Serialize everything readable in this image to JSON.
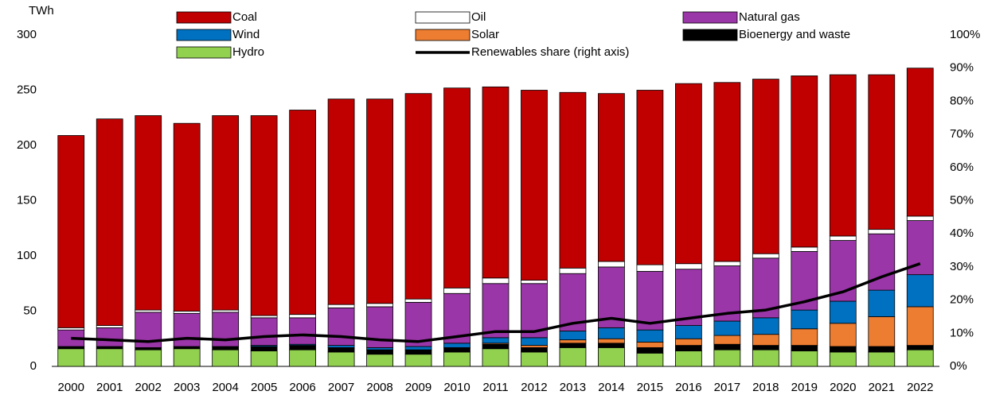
{
  "chart_data": {
    "type": "bar",
    "y_axis_label": "TWh",
    "categories": [
      "2000",
      "2001",
      "2002",
      "2003",
      "2004",
      "2005",
      "2006",
      "2007",
      "2008",
      "2009",
      "2010",
      "2011",
      "2012",
      "2013",
      "2014",
      "2015",
      "2016",
      "2017",
      "2018",
      "2019",
      "2020",
      "2021",
      "2022"
    ],
    "series": [
      {
        "name": "Coal",
        "color": "#c00000",
        "values": [
          174,
          187,
          176,
          170,
          176,
          181,
          185,
          186,
          185,
          186,
          181,
          173,
          172,
          159,
          152,
          158,
          163,
          162,
          158,
          155,
          146,
          140,
          134
        ]
      },
      {
        "name": "Oil",
        "color": "#ffffff",
        "values": [
          2,
          2,
          2,
          2,
          2,
          2,
          3,
          3,
          3,
          3,
          5,
          5,
          3,
          5,
          5,
          6,
          5,
          4,
          4,
          4,
          4,
          4,
          4
        ]
      },
      {
        "name": "Natural gas",
        "color": "#9b36a8",
        "values": [
          15,
          17,
          32,
          30,
          31,
          25,
          24,
          34,
          37,
          40,
          45,
          49,
          49,
          52,
          55,
          53,
          51,
          50,
          54,
          53,
          55,
          51,
          49
        ]
      },
      {
        "name": "Wind",
        "color": "#0070c0",
        "values": [
          0,
          0,
          0,
          0,
          0,
          1,
          1,
          2,
          2,
          3,
          4,
          5,
          7,
          8,
          10,
          11,
          12,
          13,
          15,
          17,
          20,
          24,
          29
        ]
      },
      {
        "name": "Solar",
        "color": "#ed7d31",
        "values": [
          0,
          0,
          0,
          0,
          0,
          0,
          0,
          0,
          0,
          0,
          0,
          1,
          2,
          3,
          4,
          5,
          6,
          8,
          10,
          15,
          21,
          27,
          35
        ]
      },
      {
        "name": "Bioenergy and waste",
        "color": "#000000",
        "values": [
          2,
          2,
          2,
          2,
          3,
          4,
          4,
          4,
          4,
          4,
          4,
          4,
          4,
          4,
          4,
          5,
          5,
          5,
          4,
          5,
          5,
          5,
          4
        ]
      },
      {
        "name": "Hydro",
        "color": "#92d050",
        "values": [
          16,
          16,
          15,
          16,
          15,
          14,
          15,
          13,
          11,
          11,
          13,
          16,
          13,
          17,
          17,
          12,
          14,
          15,
          15,
          14,
          13,
          13,
          15
        ]
      },
      {
        "name": "Renewables share (right axis)",
        "color": "#000000",
        "axis": "y2",
        "type": "line",
        "values": [
          8.5,
          8,
          7.5,
          8.5,
          8,
          9,
          9.5,
          9,
          8,
          7.5,
          9,
          10.5,
          10.5,
          13,
          14.5,
          13,
          14.5,
          16,
          17,
          19.5,
          22.5,
          27,
          31
        ]
      }
    ],
    "ylim": [
      0,
      300
    ],
    "yticks": [
      0,
      50,
      100,
      150,
      200,
      250,
      300
    ],
    "y2lim": [
      0,
      100
    ],
    "y2ticks": [
      {
        "value": 0,
        "label": "0%"
      },
      {
        "value": 10,
        "label": "10%"
      },
      {
        "value": 20,
        "label": "20%"
      },
      {
        "value": 30,
        "label": "30%"
      },
      {
        "value": 40,
        "label": "40%"
      },
      {
        "value": 50,
        "label": "50%"
      },
      {
        "value": 60,
        "label": "60%"
      },
      {
        "value": 70,
        "label": "70%"
      },
      {
        "value": 80,
        "label": "80%"
      },
      {
        "value": 90,
        "label": "90%"
      },
      {
        "value": 100,
        "label": "100%"
      }
    ],
    "stacked": true,
    "grid": false,
    "legend": "top"
  }
}
